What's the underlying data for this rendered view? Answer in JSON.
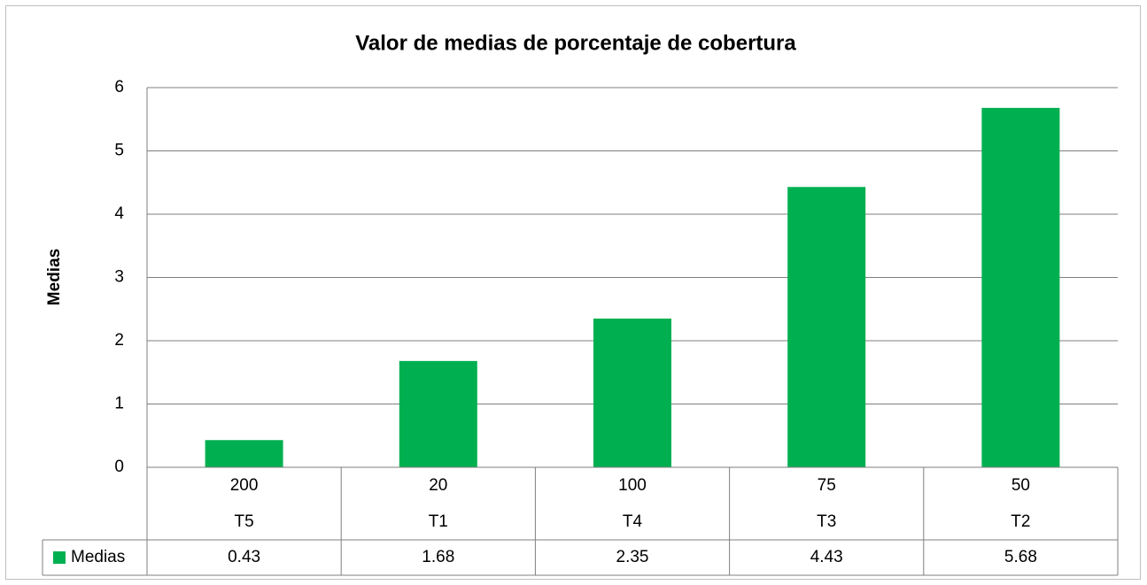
{
  "chart_data": {
    "type": "bar",
    "title": "Valor de medias de porcentaje de cobertura",
    "y_label": "Medias",
    "categories": [
      [
        "200",
        "T5"
      ],
      [
        "20",
        "T1"
      ],
      [
        "100",
        "T4"
      ],
      [
        "75",
        "T3"
      ],
      [
        "50",
        "T2"
      ]
    ],
    "series": [
      {
        "name": "Medias",
        "color": "#00b050",
        "values": [
          0.43,
          1.68,
          2.35,
          4.43,
          5.68
        ]
      }
    ],
    "ylim": [
      0,
      6
    ],
    "yticks": [
      0,
      1,
      2,
      3,
      4,
      5,
      6
    ],
    "grid": true,
    "data_table": true
  }
}
